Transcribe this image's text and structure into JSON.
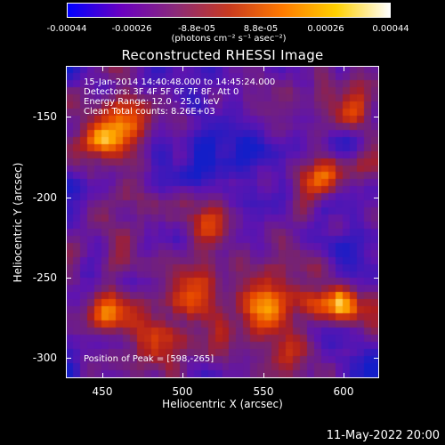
{
  "colorbar": {
    "ticks": [
      "-0.00044",
      "-0.00026",
      "-8.8e-05",
      "8.8e-05",
      "0.00026",
      "0.00044"
    ],
    "units": "(photons cm⁻² s⁻¹ asec⁻²)",
    "colormap": [
      "#0000ff",
      "#6a00c0",
      "#8a2a7a",
      "#c83a20",
      "#ff7a00",
      "#ffd000",
      "#ffffff"
    ]
  },
  "title": "Reconstructed RHESSI Image",
  "info": {
    "time_range": "15-Jan-2014 14:40:48.000 to 14:45:24.000",
    "detectors": "Detectors: 3F 4F 5F 6F 7F 8F, Att 0",
    "energy_range": "Energy Range: 12.0 - 25.0 keV",
    "method": "Clean     Total counts: 8.26E+03",
    "peak": "Position of Peak = [598,-265]"
  },
  "axes": {
    "xlabel": "Heliocentric X (arcsec)",
    "ylabel": "Heliocentric Y (arcsec)",
    "xticks": [
      "450",
      "500",
      "550",
      "600"
    ],
    "yticks": [
      "-150",
      "-200",
      "-250",
      "-300"
    ]
  },
  "timestamp": "11-May-2022 20:00"
}
